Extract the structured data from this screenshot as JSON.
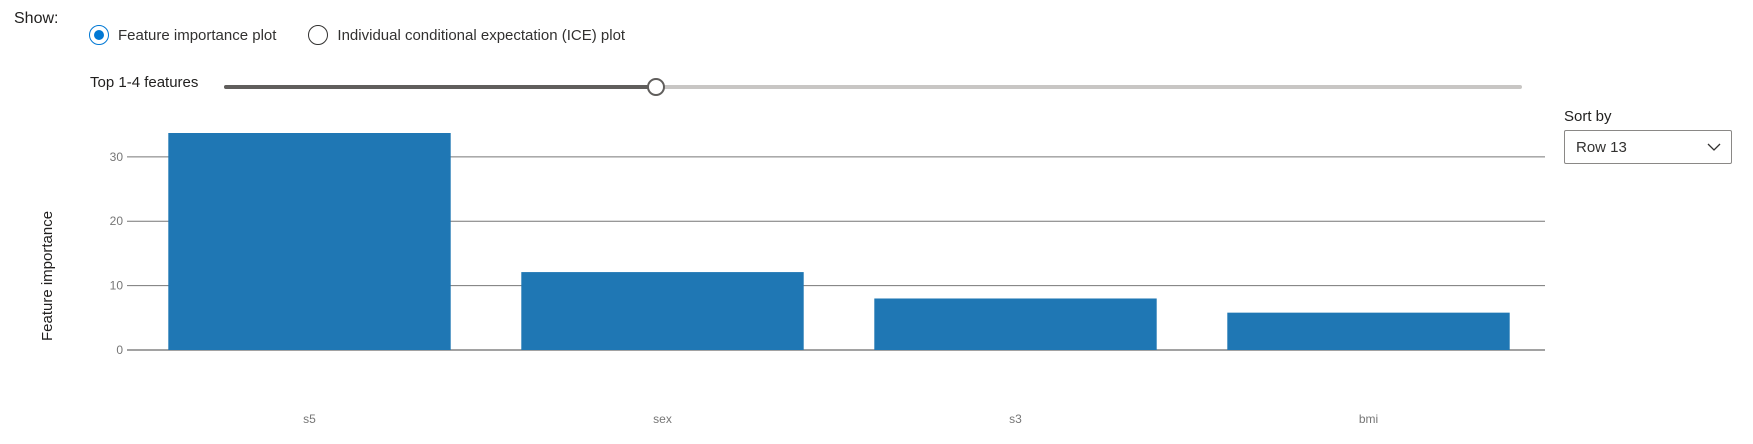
{
  "show_label": "Show:",
  "radios": [
    {
      "label": "Feature importance plot",
      "checked": true
    },
    {
      "label": "Individual conditional expectation (ICE) plot",
      "checked": false
    }
  ],
  "slider": {
    "label": "Top 1-4 features",
    "fraction": 0.333
  },
  "sort_by": {
    "label": "Sort by",
    "value": "Row 13",
    "icon": "chevron-down-icon"
  },
  "colors": {
    "accent": "#0078d4",
    "bar": "#1f77b4"
  },
  "chart_data": {
    "type": "bar",
    "categories": [
      "s5",
      "sex",
      "s3",
      "bmi"
    ],
    "values": [
      33.7,
      12.1,
      8.0,
      5.8
    ],
    "xlabel": "",
    "ylabel": "Feature importance",
    "ylim": [
      0,
      33.7
    ],
    "yticks": [
      0,
      10,
      20,
      30
    ],
    "grid": true
  }
}
